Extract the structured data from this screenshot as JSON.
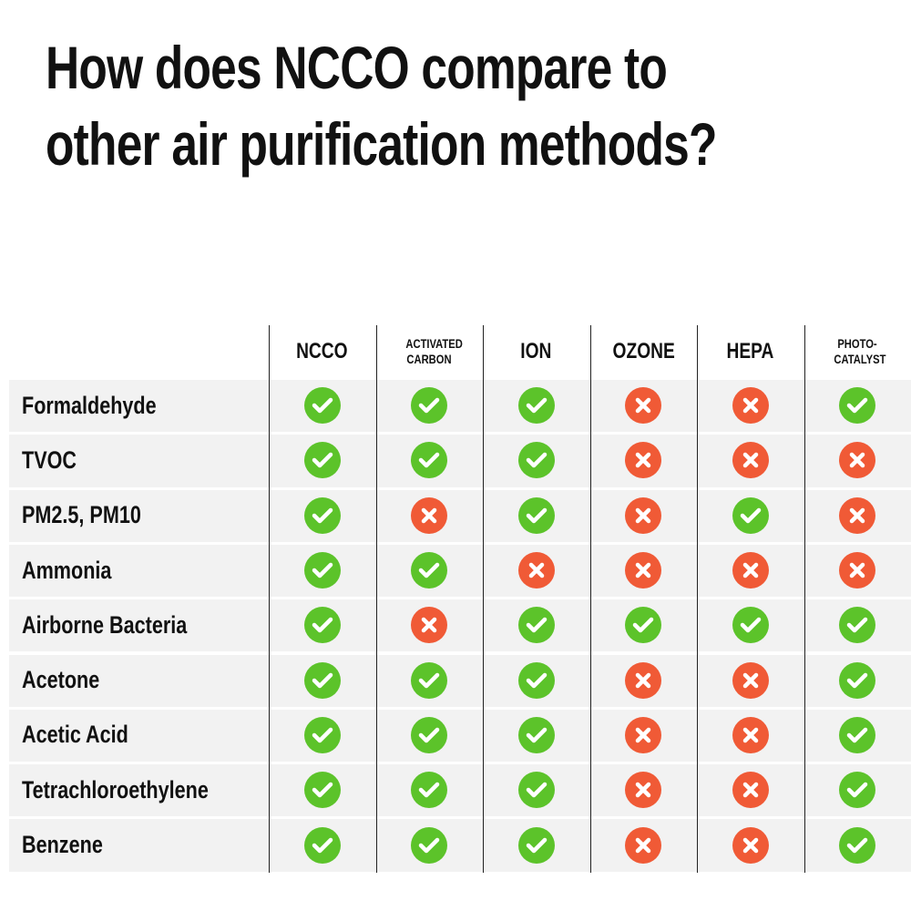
{
  "title": "How does NCCO compare to other air purification methods?",
  "table": {
    "columns": [
      "NCCO",
      "ACTIVATED CARBON",
      "ION",
      "OZONE",
      "HEPA",
      "PHOTO-CATALYST"
    ],
    "rows": [
      {
        "label": "Formaldehyde",
        "values": [
          true,
          true,
          true,
          false,
          false,
          true
        ]
      },
      {
        "label": "TVOC",
        "values": [
          true,
          true,
          true,
          false,
          false,
          false
        ]
      },
      {
        "label": "PM2.5, PM10",
        "values": [
          true,
          false,
          true,
          false,
          true,
          false
        ]
      },
      {
        "label": "Ammonia",
        "values": [
          true,
          true,
          false,
          false,
          false,
          false
        ]
      },
      {
        "label": "Airborne Bacteria",
        "values": [
          true,
          false,
          true,
          true,
          true,
          true
        ]
      },
      {
        "label": "Acetone",
        "values": [
          true,
          true,
          true,
          false,
          false,
          true
        ]
      },
      {
        "label": "Acetic Acid",
        "values": [
          true,
          true,
          true,
          false,
          false,
          true
        ]
      },
      {
        "label": "Tetrachloroethylene",
        "values": [
          true,
          true,
          true,
          false,
          false,
          true
        ]
      },
      {
        "label": "Benzene",
        "values": [
          true,
          true,
          true,
          false,
          false,
          true
        ]
      }
    ]
  }
}
